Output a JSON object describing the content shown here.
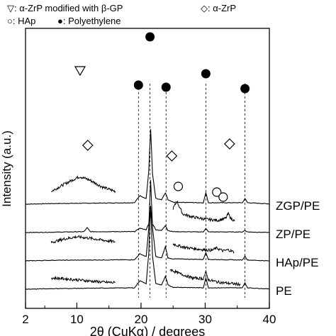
{
  "chart_data": {
    "type": "line",
    "title": "",
    "xlabel": "2θ (CuKα) / degrees",
    "ylabel": "Intensity (a.u.)",
    "xlim": [
      2,
      40
    ],
    "x_tick_labels": [
      "2",
      "10",
      "20",
      "30",
      "40"
    ],
    "x_ticks": [
      2,
      10,
      20,
      30,
      40
    ],
    "legend": [
      {
        "symbol": "triangle-down-open",
        "text": "▽: α-ZrP modified with β-GP"
      },
      {
        "symbol": "diamond-open",
        "text": "◇: α-ZrP"
      },
      {
        "symbol": "circle-open",
        "text": "○: HAp"
      },
      {
        "symbol": "circle-filled",
        "text": "●: Polyethylene"
      }
    ],
    "series": [
      {
        "name": "ZGP/PE",
        "offset": 3.0,
        "x": [
          2,
          6,
          19,
          19.8,
          20.8,
          21.2,
          21.5,
          21.8,
          22.3,
          23.2,
          23.8,
          24.2,
          25,
          29.7,
          30.1,
          30.5,
          35.8,
          36.2,
          36.6,
          40
        ],
        "y": [
          0.05,
          0.07,
          0.1,
          0.35,
          0.25,
          1.2,
          2.7,
          1.1,
          0.25,
          0.2,
          0.45,
          0.2,
          0.12,
          0.1,
          0.45,
          0.1,
          0.1,
          0.25,
          0.1,
          0.06
        ],
        "inset": {
          "x": [
            6,
            8,
            10,
            10.5,
            12,
            14,
            16
          ],
          "y": [
            0.5,
            0.75,
            0.98,
            1.02,
            0.9,
            0.65,
            0.5
          ],
          "base": 0.4
        }
      },
      {
        "name": "ZP/PE",
        "offset": 2.0,
        "x": [
          2,
          6,
          11.1,
          11.6,
          12.1,
          19,
          19.8,
          20.8,
          21.2,
          21.5,
          21.8,
          22.3,
          23.2,
          23.8,
          24.2,
          25,
          29.7,
          30.1,
          30.5,
          35.8,
          36.2,
          36.6,
          40
        ],
        "y": [
          0.05,
          0.06,
          0.08,
          0.22,
          0.08,
          0.08,
          0.2,
          0.15,
          0.35,
          0.9,
          0.35,
          0.15,
          0.12,
          0.3,
          0.12,
          0.08,
          0.07,
          0.2,
          0.07,
          0.07,
          0.12,
          0.07,
          0.05
        ],
        "inset": {
          "x": [
            25,
            25.6,
            26.5,
            28,
            30,
            32,
            33.2,
            33.6,
            34,
            34.6
          ],
          "y": [
            0.9,
            1.15,
            0.7,
            0.6,
            0.52,
            0.48,
            0.55,
            0.72,
            0.55,
            0.45
          ],
          "base": 0.3
        }
      },
      {
        "name": "HAp/PE",
        "offset": 1.0,
        "x": [
          2,
          6,
          19,
          19.8,
          20.8,
          21.2,
          21.5,
          21.8,
          22.3,
          23.2,
          23.8,
          24.2,
          25,
          29.7,
          30.1,
          30.5,
          35.8,
          36.2,
          36.6,
          40
        ],
        "y": [
          0.05,
          0.07,
          0.09,
          0.3,
          0.2,
          1.2,
          2.9,
          1.2,
          0.2,
          0.15,
          0.55,
          0.15,
          0.12,
          0.1,
          0.35,
          0.1,
          0.08,
          0.22,
          0.08,
          0.05
        ],
        "inset": {
          "x": [
            6,
            8,
            10,
            12,
            14,
            16
          ],
          "y": [
            0.7,
            0.82,
            0.9,
            0.85,
            0.78,
            0.72
          ],
          "base": 0.55
        },
        "inset2": {
          "x": [
            25,
            25.8,
            27,
            29,
            31,
            31.8,
            32.8,
            33.6,
            34.5
          ],
          "y": [
            0.65,
            0.58,
            0.52,
            0.46,
            0.42,
            0.5,
            0.4,
            0.44,
            0.36
          ],
          "base": 0.3
        }
      },
      {
        "name": "PE",
        "offset": 0.0,
        "x": [
          2,
          6,
          19,
          19.8,
          20.8,
          21.2,
          21.5,
          21.8,
          22.3,
          23.2,
          23.8,
          24.2,
          25,
          29.7,
          30.1,
          30.5,
          35.8,
          36.2,
          36.6,
          40
        ],
        "y": [
          0.05,
          0.07,
          0.1,
          0.35,
          0.25,
          1.3,
          3.0,
          1.2,
          0.25,
          0.2,
          0.5,
          0.2,
          0.12,
          0.1,
          0.45,
          0.1,
          0.1,
          0.28,
          0.1,
          0.06
        ],
        "inset": {
          "x": [
            6,
            8,
            10,
            12,
            14,
            16
          ],
          "y": [
            0.45,
            0.42,
            0.38,
            0.34,
            0.3,
            0.28
          ],
          "base": 0.2
        },
        "inset2": {
          "x": [
            24.5,
            26,
            28,
            29.7,
            30.1,
            30.5,
            32,
            34,
            35.5
          ],
          "y": [
            0.75,
            0.6,
            0.45,
            0.42,
            0.65,
            0.38,
            0.3,
            0.25,
            0.22
          ],
          "base": 0.15
        }
      }
    ],
    "reference_lines_x": [
      19.6,
      21.4,
      23.9,
      30.1,
      36.2
    ],
    "markers": [
      {
        "symbol": "triangle-down-open",
        "x": 10.5,
        "series": "ZGP/PE"
      },
      {
        "symbol": "circle-filled",
        "x": 19.6,
        "series": "ZGP/PE"
      },
      {
        "symbol": "circle-filled",
        "x": 21.4,
        "series": "ZGP/PE"
      },
      {
        "symbol": "circle-filled",
        "x": 23.9,
        "series": "ZGP/PE"
      },
      {
        "symbol": "circle-filled",
        "x": 30.1,
        "series": "ZGP/PE"
      },
      {
        "symbol": "circle-filled",
        "x": 36.2,
        "series": "ZGP/PE"
      },
      {
        "symbol": "diamond-open",
        "x": 11.7,
        "series": "ZP/PE"
      },
      {
        "symbol": "diamond-open",
        "x": 24.8,
        "series": "ZP/PE"
      },
      {
        "symbol": "diamond-open",
        "x": 33.8,
        "series": "ZP/PE"
      },
      {
        "symbol": "circle-open",
        "x": 25.8,
        "series": "HAp/PE"
      },
      {
        "symbol": "circle-open",
        "x": 31.8,
        "series": "HAp/PE"
      },
      {
        "symbol": "circle-open",
        "x": 32.8,
        "series": "HAp/PE"
      }
    ],
    "colors": {
      "line": "#000000",
      "background": "#ffffff"
    }
  }
}
